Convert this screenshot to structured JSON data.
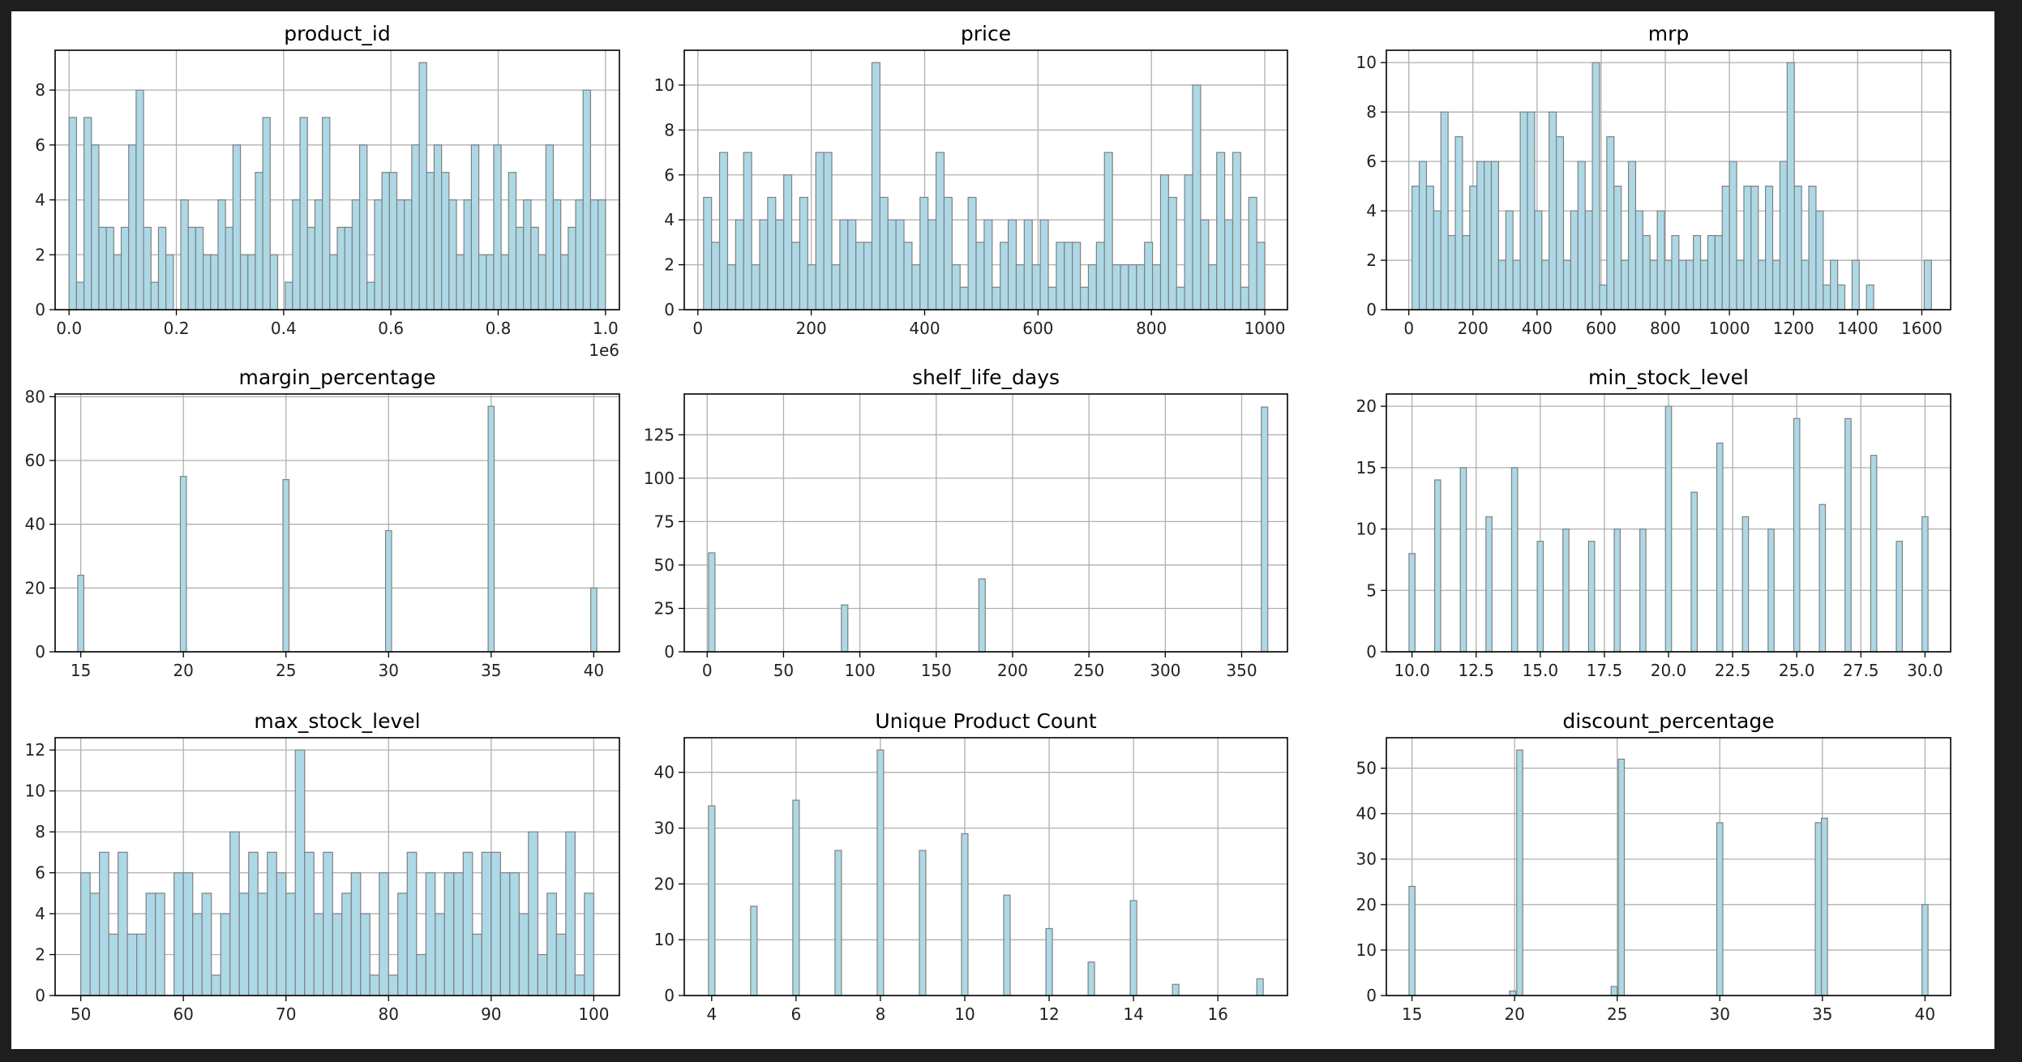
{
  "chart_data": [
    {
      "type": "bar",
      "title": "product_id",
      "xlim": [
        -26000,
        1026000
      ],
      "ylim": [
        0,
        9.45
      ],
      "xticks": [
        0,
        200000,
        400000,
        600000,
        800000,
        1000000
      ],
      "xtick_labels": [
        "0.0",
        "0.2",
        "0.4",
        "0.6",
        "0.8",
        "1.0"
      ],
      "yticks": [
        0,
        2,
        4,
        6,
        8
      ],
      "offset_text": "1e6",
      "bin_range": [
        0,
        1000000
      ],
      "values": [
        7,
        1,
        7,
        6,
        3,
        3,
        2,
        3,
        6,
        8,
        3,
        1,
        3,
        2,
        0,
        4,
        3,
        3,
        2,
        2,
        4,
        3,
        6,
        2,
        2,
        5,
        7,
        2,
        0,
        1,
        4,
        7,
        3,
        4,
        7,
        2,
        3,
        3,
        4,
        6,
        1,
        4,
        5,
        5,
        4,
        4,
        6,
        9,
        5,
        6,
        5,
        4,
        2,
        4,
        6,
        2,
        2,
        6,
        2,
        5,
        3,
        4,
        3,
        2,
        6,
        4,
        2,
        3,
        4,
        8,
        4,
        4
      ]
    },
    {
      "type": "bar",
      "title": "price",
      "xlim": [
        -24,
        1040
      ],
      "ylim": [
        0,
        11.55
      ],
      "xticks": [
        0,
        200,
        400,
        600,
        800,
        1000
      ],
      "xtick_labels": [
        "0",
        "200",
        "400",
        "600",
        "800",
        "1000"
      ],
      "yticks": [
        0,
        2,
        4,
        6,
        8,
        10
      ],
      "bin_range": [
        10,
        1000
      ],
      "values": [
        5,
        3,
        7,
        2,
        4,
        7,
        2,
        4,
        5,
        4,
        6,
        3,
        5,
        2,
        7,
        7,
        2,
        4,
        4,
        3,
        3,
        11,
        5,
        4,
        4,
        3,
        2,
        5,
        4,
        7,
        5,
        2,
        1,
        5,
        3,
        4,
        1,
        3,
        4,
        2,
        4,
        2,
        4,
        1,
        3,
        3,
        3,
        1,
        2,
        3,
        7,
        2,
        2,
        2,
        2,
        3,
        2,
        6,
        5,
        1,
        6,
        10,
        4,
        2,
        7,
        4,
        7,
        1,
        5,
        3
      ]
    },
    {
      "type": "bar",
      "title": "mrp",
      "xlim": [
        -70,
        1690
      ],
      "ylim": [
        0,
        10.5
      ],
      "xticks": [
        0,
        200,
        400,
        600,
        800,
        1000,
        1200,
        1400,
        1600
      ],
      "xtick_labels": [
        "0",
        "200",
        "400",
        "600",
        "800",
        "1000",
        "1200",
        "1400",
        "1600"
      ],
      "yticks": [
        0,
        2,
        4,
        6,
        8,
        10
      ],
      "bin_range": [
        10,
        1630
      ],
      "values": [
        5,
        6,
        5,
        4,
        8,
        3,
        7,
        3,
        5,
        6,
        6,
        6,
        2,
        4,
        2,
        8,
        8,
        4,
        2,
        8,
        7,
        2,
        4,
        6,
        4,
        10,
        1,
        7,
        5,
        2,
        6,
        4,
        3,
        2,
        4,
        2,
        3,
        2,
        2,
        3,
        2,
        3,
        3,
        5,
        6,
        2,
        5,
        5,
        2,
        5,
        2,
        6,
        10,
        5,
        2,
        5,
        4,
        1,
        2,
        1,
        0,
        2,
        0,
        1,
        0,
        0,
        0,
        0,
        0,
        0,
        0,
        2
      ]
    },
    {
      "type": "bar",
      "title": "margin_percentage",
      "xlim": [
        13.75,
        41.25
      ],
      "ylim": [
        0,
        80.85
      ],
      "xticks": [
        15,
        20,
        25,
        30,
        35,
        40
      ],
      "xtick_labels": [
        "15",
        "20",
        "25",
        "30",
        "35",
        "40"
      ],
      "yticks": [
        0,
        20,
        40,
        60,
        80
      ],
      "x": [
        15,
        20,
        25,
        30,
        35,
        40
      ],
      "values": [
        24,
        55,
        54,
        38,
        77,
        20
      ]
    },
    {
      "type": "bar",
      "title": "shelf_life_days",
      "xlim": [
        -15,
        380
      ],
      "ylim": [
        0,
        148.5
      ],
      "xticks": [
        0,
        50,
        100,
        150,
        200,
        250,
        300,
        350
      ],
      "xtick_labels": [
        "0",
        "50",
        "100",
        "150",
        "200",
        "250",
        "300",
        "350"
      ],
      "yticks": [
        0,
        25,
        50,
        75,
        100,
        125
      ],
      "x": [
        3,
        90,
        180,
        365
      ],
      "values": [
        57,
        27,
        42,
        141
      ]
    },
    {
      "type": "bar",
      "title": "min_stock_level",
      "xlim": [
        9.0,
        31.0
      ],
      "ylim": [
        0,
        21.0
      ],
      "xticks": [
        10,
        12.5,
        15,
        17.5,
        20,
        22.5,
        25,
        27.5,
        30
      ],
      "xtick_labels": [
        "10.0",
        "12.5",
        "15.0",
        "17.5",
        "20.0",
        "22.5",
        "25.0",
        "27.5",
        "30.0"
      ],
      "yticks": [
        0,
        5,
        10,
        15,
        20
      ],
      "x": [
        10,
        11,
        12,
        13,
        14,
        15,
        16,
        17,
        18,
        19,
        20,
        21,
        22,
        23,
        24,
        25,
        26,
        27,
        28,
        29,
        30
      ],
      "values": [
        8,
        14,
        15,
        11,
        15,
        9,
        10,
        9,
        10,
        10,
        20,
        13,
        17,
        11,
        10,
        19,
        12,
        19,
        16,
        9,
        11
      ]
    },
    {
      "type": "bar",
      "title": "max_stock_level",
      "xlim": [
        47.5,
        102.5
      ],
      "ylim": [
        0,
        12.6
      ],
      "xticks": [
        50,
        60,
        70,
        80,
        90,
        100
      ],
      "xtick_labels": [
        "50",
        "60",
        "70",
        "80",
        "90",
        "100"
      ],
      "yticks": [
        0,
        2,
        4,
        6,
        8,
        10,
        12
      ],
      "bin_range": [
        50,
        100
      ],
      "values": [
        6,
        5,
        7,
        3,
        7,
        3,
        3,
        5,
        5,
        0,
        6,
        6,
        4,
        5,
        1,
        4,
        8,
        5,
        7,
        5,
        7,
        6,
        5,
        12,
        7,
        4,
        7,
        4,
        5,
        6,
        4,
        1,
        6,
        1,
        5,
        7,
        2,
        6,
        4,
        6,
        6,
        7,
        3,
        7,
        7,
        6,
        6,
        4,
        8,
        2,
        5,
        3,
        8,
        1,
        5
      ]
    },
    {
      "type": "bar",
      "title": "Unique Product Count",
      "xlim": [
        3.35,
        17.65
      ],
      "ylim": [
        0,
        46.2
      ],
      "xticks": [
        4,
        6,
        8,
        10,
        12,
        14,
        16
      ],
      "xtick_labels": [
        "4",
        "6",
        "8",
        "10",
        "12",
        "14",
        "16"
      ],
      "yticks": [
        0,
        10,
        20,
        30,
        40
      ],
      "x": [
        4,
        5,
        6,
        7,
        8,
        9,
        10,
        11,
        12,
        13,
        14,
        15,
        16,
        17
      ],
      "values": [
        34,
        16,
        35,
        26,
        44,
        26,
        29,
        18,
        12,
        6,
        17,
        2,
        0,
        3
      ]
    },
    {
      "type": "bar",
      "title": "discount_percentage",
      "xlim": [
        13.75,
        41.25
      ],
      "ylim": [
        0,
        56.7
      ],
      "xticks": [
        15,
        20,
        25,
        30,
        35,
        40
      ],
      "xtick_labels": [
        "15",
        "20",
        "25",
        "30",
        "35",
        "40"
      ],
      "yticks": [
        0,
        10,
        20,
        30,
        40,
        50
      ],
      "x": [
        15,
        19.9,
        20.25,
        24.85,
        25.2,
        30,
        34.8,
        35.1,
        40
      ],
      "values": [
        24,
        1,
        54,
        2,
        52,
        38,
        38,
        39,
        20
      ]
    }
  ],
  "style": {
    "bar_fill": "#add8e6",
    "bar_edge": "#808080",
    "grid": "#b0b0b0"
  }
}
